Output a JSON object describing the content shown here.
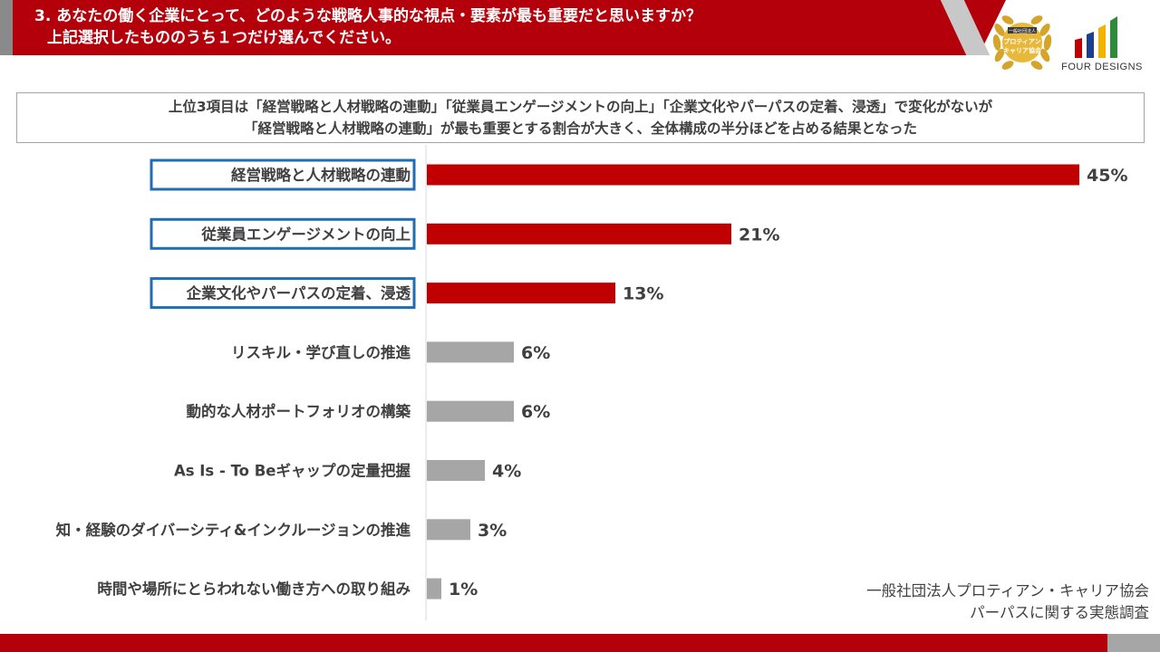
{
  "header": {
    "line1": "3. あなたの働く企業にとって、どのような戦略人事的な視点・要素が最も重要だと思いますか？",
    "line2": "上記選択したもののうち１つだけ選んでください。"
  },
  "logos": {
    "seal_top": "一般社団法人",
    "seal_mid": "プロティアン",
    "seal_bottom": "キャリア協会",
    "brand": "FOUR DESIGNS"
  },
  "summary": {
    "line1": "上位3項目は「経営戦略と人材戦略の連動」「従業員エンゲージメントの向上」「企業文化やパーパスの定着、浸透」で変化がないが",
    "line2": "「経営戦略と人材戦略の連動」が最も重要とする割合が大きく、全体構成の半分ほどを占める結果となった"
  },
  "colors": {
    "accent": "#c00000",
    "gray_bar": "#a6a6a6",
    "highlight_border": "#1f6eb4"
  },
  "chart_data": {
    "type": "bar",
    "orientation": "horizontal",
    "categories": [
      "経営戦略と人材戦略の連動",
      "従業員エンゲージメントの向上",
      "企業文化やパーパスの定着、浸透",
      "リスキル・学び直しの推進",
      "動的な人材ポートフォリオの構築",
      "As Is - To Beギャップの定量把握",
      "知・経験のダイバーシティ&インクルージョンの推進",
      "時間や場所にとらわれない働き方への取り組み"
    ],
    "values": [
      45,
      21,
      13,
      6,
      6,
      4,
      3,
      1
    ],
    "value_labels": [
      "45%",
      "21%",
      "13%",
      "6%",
      "6%",
      "4%",
      "3%",
      "1%"
    ],
    "highlighted": [
      true,
      true,
      true,
      false,
      false,
      false,
      false,
      false
    ],
    "xlim": [
      0,
      50
    ]
  },
  "source": {
    "line1": "一般社団法人プロティアン・キャリア協会",
    "line2": "パーパスに関する実態調査"
  }
}
